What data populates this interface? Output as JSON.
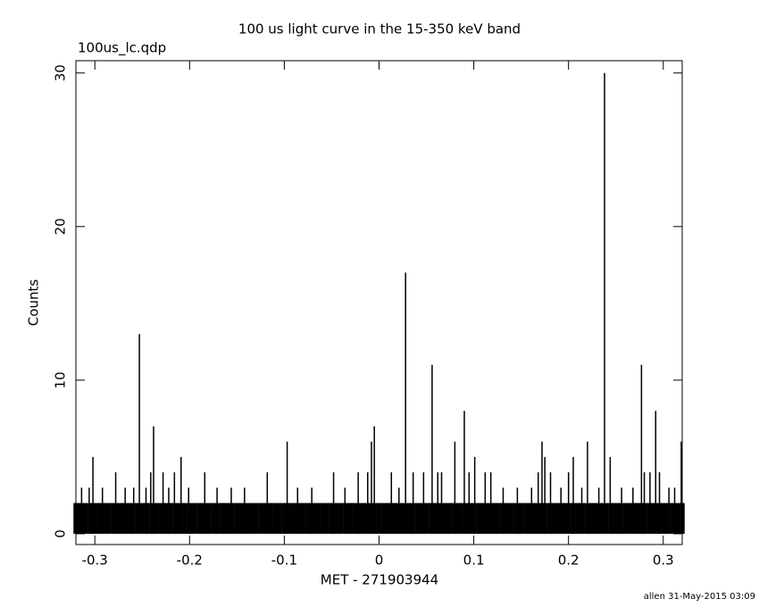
{
  "chart_data": {
    "type": "bar",
    "title": "100 us light curve in the 15-350 keV band",
    "subtitle": "100us_lc.qdp",
    "x_label": "MET - 271903944",
    "y_label": "Counts",
    "footer": "allen 31-May-2015 03:09",
    "color": "#000000",
    "xlim": [
      -0.32,
      0.32
    ],
    "ylim": [
      -0.7,
      30.8
    ],
    "xticks": [
      -0.3,
      -0.2,
      -0.1,
      0,
      0.1,
      0.2,
      0.3
    ],
    "yticks": [
      0,
      10,
      20,
      30
    ],
    "x": [
      -0.32,
      -0.315,
      -0.31,
      -0.305,
      -0.3,
      -0.295,
      -0.29,
      -0.285,
      -0.28,
      -0.275,
      -0.27,
      -0.265,
      -0.26,
      -0.255,
      -0.25,
      -0.245,
      -0.24,
      -0.235,
      -0.23,
      -0.225,
      -0.22,
      -0.215,
      -0.21,
      -0.205,
      -0.2,
      -0.195,
      -0.19,
      -0.185,
      -0.18,
      -0.175,
      -0.17,
      -0.165,
      -0.16,
      -0.155,
      -0.15,
      -0.145,
      -0.14,
      -0.135,
      -0.13,
      -0.125,
      -0.12,
      -0.115,
      -0.11,
      -0.105,
      -0.1,
      -0.095,
      -0.09,
      -0.085,
      -0.08,
      -0.075,
      -0.07,
      -0.065,
      -0.06,
      -0.055,
      -0.05,
      -0.045,
      -0.04,
      -0.035,
      -0.03,
      -0.025,
      -0.02,
      -0.015,
      -0.01,
      -0.005,
      0,
      0.005,
      0.01,
      0.015,
      0.02,
      0.025,
      0.03,
      0.035,
      0.04,
      0.045,
      0.05,
      0.055,
      0.06,
      0.065,
      0.07,
      0.075,
      0.08,
      0.085,
      0.09,
      0.095,
      0.1,
      0.105,
      0.11,
      0.115,
      0.12,
      0.125,
      0.13,
      0.135,
      0.14,
      0.145,
      0.15,
      0.155,
      0.16,
      0.165,
      0.17,
      0.175,
      0.18,
      0.185,
      0.19,
      0.195,
      0.2,
      0.205,
      0.21,
      0.215,
      0.22,
      0.225,
      0.23,
      0.235,
      0.24,
      0.245,
      0.25,
      0.255,
      0.26,
      0.265,
      0.27,
      0.275,
      0.28,
      0.285,
      0.29,
      0.295,
      0.3,
      0.305,
      0.31,
      0.315,
      0.32,
      -0.314,
      -0.306,
      -0.302,
      -0.292,
      -0.278,
      -0.268,
      -0.259,
      -0.253,
      -0.246,
      -0.241,
      -0.238,
      -0.228,
      -0.222,
      -0.216,
      -0.209,
      -0.201,
      -0.184,
      -0.171,
      -0.156,
      -0.142,
      -0.118,
      -0.097,
      -0.086,
      -0.071,
      -0.048,
      -0.036,
      -0.022,
      -0.012,
      -0.008,
      -0.005,
      0.013,
      0.021,
      0.028,
      0.036,
      0.047,
      0.056,
      0.062,
      0.066,
      0.08,
      0.09,
      0.095,
      0.101,
      0.112,
      0.118,
      0.131,
      0.146,
      0.161,
      0.168,
      0.172,
      0.175,
      0.181,
      0.192,
      0.2,
      0.205,
      0.214,
      0.22,
      0.232,
      0.238,
      0.244,
      0.256,
      0.268,
      0.277,
      0.28,
      0.286,
      0.292,
      0.296,
      0.306,
      0.312,
      0.319
    ],
    "values": [
      2,
      2,
      2,
      2,
      2,
      2,
      2,
      2,
      2,
      2,
      2,
      2,
      2,
      2,
      2,
      2,
      2,
      2,
      2,
      2,
      2,
      2,
      2,
      2,
      2,
      2,
      2,
      2,
      2,
      2,
      2,
      2,
      2,
      2,
      2,
      2,
      2,
      2,
      2,
      2,
      2,
      2,
      2,
      2,
      2,
      2,
      2,
      2,
      2,
      2,
      2,
      2,
      2,
      2,
      2,
      2,
      2,
      2,
      2,
      2,
      2,
      2,
      2,
      2,
      2,
      2,
      2,
      2,
      2,
      2,
      2,
      2,
      2,
      2,
      2,
      2,
      2,
      2,
      2,
      2,
      2,
      2,
      2,
      2,
      2,
      2,
      2,
      2,
      2,
      2,
      2,
      2,
      2,
      2,
      2,
      2,
      2,
      2,
      2,
      2,
      2,
      2,
      2,
      2,
      2,
      2,
      2,
      2,
      2,
      2,
      2,
      2,
      2,
      2,
      2,
      2,
      2,
      2,
      2,
      2,
      2,
      2,
      2,
      2,
      2,
      2,
      2,
      2,
      2,
      3,
      3,
      5,
      3,
      4,
      3,
      3,
      13,
      3,
      4,
      7,
      4,
      3,
      4,
      5,
      3,
      4,
      3,
      3,
      3,
      4,
      6,
      3,
      3,
      4,
      3,
      4,
      4,
      6,
      7,
      4,
      3,
      17,
      4,
      4,
      11,
      4,
      4,
      6,
      8,
      4,
      5,
      4,
      4,
      3,
      3,
      3,
      4,
      6,
      5,
      4,
      3,
      4,
      5,
      3,
      6,
      3,
      30,
      5,
      3,
      3,
      11,
      4,
      4,
      8,
      4,
      3,
      3,
      6
    ]
  }
}
